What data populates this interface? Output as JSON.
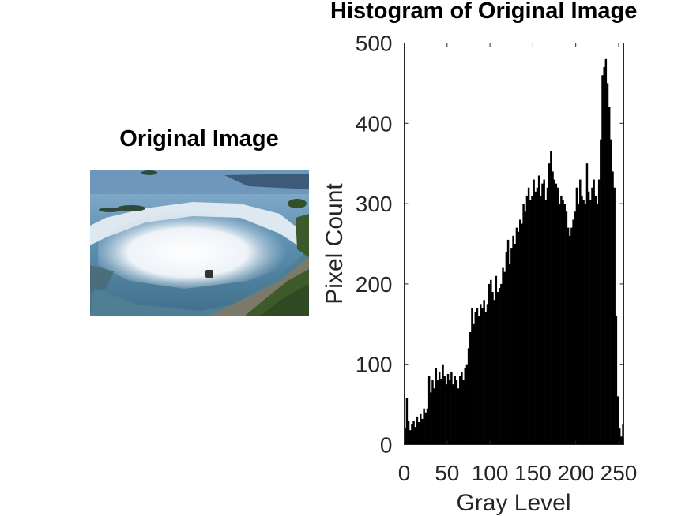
{
  "left_panel": {
    "title": "Original Image",
    "image_subject": "aerial view of a horseshoe waterfall with mist and a tour boat"
  },
  "colors": {
    "bar": "#000000",
    "water": "#5d8fb0",
    "mist": "#f4f7fa",
    "foliage": "#3c5a2a",
    "axis": "#262626"
  },
  "chart_data": {
    "type": "bar",
    "title": "Histogram of Original Image",
    "xlabel": "Gray Level",
    "ylabel": "Pixel Count",
    "xlim": [
      0,
      256
    ],
    "ylim": [
      0,
      500
    ],
    "xticks": [
      0,
      50,
      100,
      150,
      200,
      250
    ],
    "yticks": [
      0,
      100,
      200,
      300,
      400,
      500
    ],
    "grid": false,
    "x": [
      0,
      2,
      4,
      6,
      8,
      10,
      12,
      14,
      16,
      18,
      20,
      22,
      24,
      26,
      28,
      30,
      32,
      34,
      36,
      38,
      40,
      42,
      44,
      46,
      48,
      50,
      52,
      54,
      56,
      58,
      60,
      62,
      64,
      66,
      68,
      70,
      72,
      74,
      76,
      78,
      80,
      82,
      84,
      86,
      88,
      90,
      92,
      94,
      96,
      98,
      100,
      102,
      104,
      106,
      108,
      110,
      112,
      114,
      116,
      118,
      120,
      122,
      124,
      126,
      128,
      130,
      132,
      134,
      136,
      138,
      140,
      142,
      144,
      146,
      148,
      150,
      152,
      154,
      156,
      158,
      160,
      162,
      164,
      166,
      168,
      170,
      172,
      174,
      176,
      178,
      180,
      182,
      184,
      186,
      188,
      190,
      192,
      194,
      196,
      198,
      200,
      202,
      204,
      206,
      208,
      210,
      212,
      214,
      216,
      218,
      220,
      222,
      224,
      226,
      228,
      230,
      232,
      234,
      236,
      238,
      240,
      242,
      244,
      246,
      248,
      250,
      252,
      254
    ],
    "values": [
      20,
      58,
      30,
      18,
      25,
      30,
      22,
      35,
      28,
      38,
      32,
      45,
      40,
      45,
      85,
      65,
      80,
      70,
      95,
      80,
      90,
      82,
      100,
      85,
      75,
      88,
      80,
      90,
      75,
      85,
      80,
      70,
      85,
      90,
      80,
      95,
      100,
      120,
      140,
      170,
      150,
      165,
      170,
      160,
      175,
      170,
      180,
      165,
      175,
      200,
      205,
      190,
      180,
      210,
      190,
      195,
      200,
      220,
      215,
      240,
      255,
      225,
      245,
      260,
      250,
      270,
      265,
      280,
      275,
      300,
      290,
      310,
      320,
      305,
      310,
      330,
      315,
      320,
      335,
      310,
      325,
      330,
      305,
      320,
      350,
      365,
      340,
      330,
      325,
      320,
      300,
      310,
      305,
      300,
      290,
      270,
      260,
      270,
      280,
      290,
      320,
      300,
      330,
      310,
      305,
      300,
      350,
      315,
      305,
      320,
      330,
      310,
      300,
      330,
      380,
      460,
      470,
      480,
      450,
      420,
      380,
      340,
      320,
      160,
      60,
      20,
      10,
      25
    ]
  }
}
